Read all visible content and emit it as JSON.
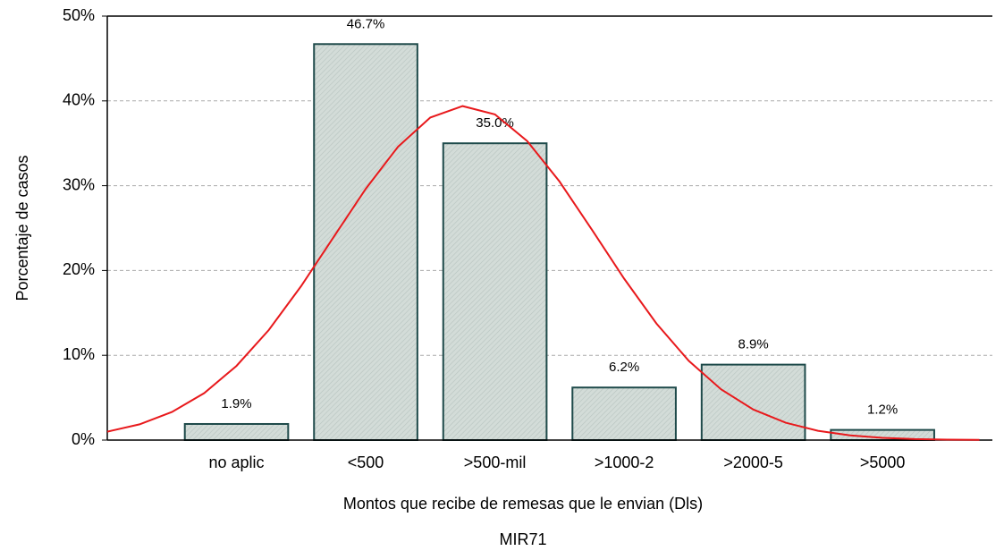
{
  "chart_data": {
    "type": "bar",
    "categories": [
      "no aplic",
      "<500",
      ">500-mil",
      ">1000-2",
      ">2000-5",
      ">5000"
    ],
    "values": [
      1.9,
      46.7,
      35.0,
      6.2,
      8.9,
      1.2
    ],
    "value_labels": [
      "1.9%",
      "46.7%",
      "35.0%",
      "6.2%",
      "8.9%",
      "1.2%"
    ],
    "color": "#d3dcd8",
    "edge_color": "#1e4a4a",
    "x_label": "Montos que recibe de remesas que le envian (Dls)",
    "caption": "MIR71",
    "y_label": "Porcentaje de casos",
    "xlim": [
      -1,
      5.85
    ],
    "ylim": [
      0,
      50
    ],
    "yticks": [
      {
        "value": 0,
        "label": "0%"
      },
      {
        "value": 10,
        "label": "10%"
      },
      {
        "value": 20,
        "label": "20%"
      },
      {
        "value": 30,
        "label": "30%"
      },
      {
        "value": 40,
        "label": "40%"
      },
      {
        "value": 50,
        "label": "50%"
      }
    ],
    "grid": true,
    "curve": {
      "color": "#e8191c",
      "x": [
        -1,
        -0.75,
        -0.5,
        -0.25,
        0,
        0.25,
        0.5,
        0.75,
        1,
        1.25,
        1.5,
        1.75,
        2,
        2.25,
        2.5,
        2.75,
        3,
        3.25,
        3.5,
        3.75,
        4,
        4.25,
        4.5,
        4.75,
        5,
        5.25,
        5.5,
        5.75
      ],
      "values": [
        0.99,
        1.86,
        3.31,
        5.54,
        8.74,
        12.99,
        18.15,
        23.9,
        29.63,
        34.6,
        38.04,
        39.39,
        38.41,
        35.26,
        30.5,
        24.82,
        19.04,
        13.75,
        9.35,
        5.99,
        3.61,
        2.05,
        1.1,
        0.55,
        0.26,
        0.12,
        0.05,
        0.02
      ]
    }
  }
}
